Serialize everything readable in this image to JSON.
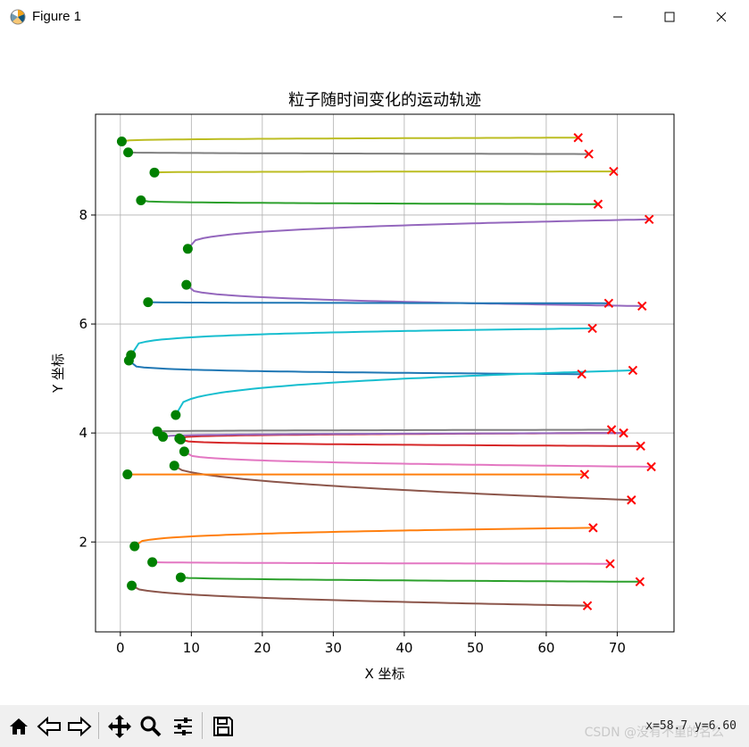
{
  "window": {
    "title": "Figure 1"
  },
  "toolbar": {
    "tools": [
      "home-icon",
      "back-icon",
      "forward-icon",
      "pan-icon",
      "zoom-icon",
      "configure-icon",
      "save-icon"
    ],
    "coords": "x=58.7 y=6.60",
    "watermark": "CSDN @没有不重的名么"
  },
  "chart_data": {
    "type": "line",
    "title": "粒子随时间变化的运动轨迹",
    "xlabel": "X 坐标",
    "ylabel": "Y 坐标",
    "xlim": [
      -3.5,
      78
    ],
    "ylim": [
      0.35,
      9.85
    ],
    "xticks": [
      0,
      10,
      20,
      30,
      40,
      50,
      60,
      70
    ],
    "yticks": [
      2,
      4,
      6,
      8
    ],
    "grid": true,
    "start_marker": {
      "shape": "circle",
      "color": "#008000"
    },
    "end_marker": {
      "shape": "x",
      "color": "#ff0000"
    },
    "series": [
      {
        "color": "#bcbd22",
        "start": [
          0.2,
          9.35
        ],
        "end": [
          64.5,
          9.42
        ],
        "curve": 0.3
      },
      {
        "color": "#7f7f7f",
        "start": [
          1.1,
          9.15
        ],
        "end": [
          66.0,
          9.12
        ],
        "curve": 0.5
      },
      {
        "color": "#bcbd22",
        "start": [
          4.8,
          8.78
        ],
        "end": [
          69.5,
          8.8
        ],
        "curve": 0.3
      },
      {
        "color": "#2ca02c",
        "start": [
          2.9,
          8.27
        ],
        "end": [
          67.3,
          8.2
        ],
        "curve": 0.3
      },
      {
        "color": "#9467bd",
        "start": [
          9.5,
          7.38
        ],
        "end": [
          74.5,
          7.92
        ],
        "curve": 0.3
      },
      {
        "color": "#9467bd",
        "start": [
          9.3,
          6.72
        ],
        "end": [
          73.5,
          6.33
        ],
        "curve": 0.3
      },
      {
        "color": "#1f77b4",
        "start": [
          3.9,
          6.4
        ],
        "end": [
          68.8,
          6.38
        ],
        "curve": 0.5
      },
      {
        "color": "#17becf",
        "start": [
          1.5,
          5.43
        ],
        "end": [
          66.5,
          5.92
        ],
        "curve": 0.2
      },
      {
        "color": "#1f77b4",
        "start": [
          1.2,
          5.33
        ],
        "end": [
          65.0,
          5.08
        ],
        "curve": 0.2
      },
      {
        "color": "#17becf",
        "start": [
          7.8,
          4.33
        ],
        "end": [
          72.2,
          5.15
        ],
        "curve": 0.3
      },
      {
        "color": "#7f7f7f",
        "start": [
          5.2,
          4.03
        ],
        "end": [
          69.2,
          4.06
        ],
        "curve": 0.5
      },
      {
        "color": "#d62728",
        "start": [
          8.3,
          3.9
        ],
        "end": [
          70.9,
          4.0
        ],
        "curve": 0.3
      },
      {
        "color": "#9467bd",
        "start": [
          6.0,
          3.93
        ],
        "end": [
          70.9,
          4.0
        ],
        "curve": 0.3
      },
      {
        "color": "#d62728",
        "start": [
          8.5,
          3.88
        ],
        "end": [
          73.3,
          3.76
        ],
        "curve": 0.3
      },
      {
        "color": "#e377c2",
        "start": [
          9.0,
          3.66
        ],
        "end": [
          74.8,
          3.38
        ],
        "curve": 0.3
      },
      {
        "color": "#8c564b",
        "start": [
          7.6,
          3.4
        ],
        "end": [
          72.0,
          2.77
        ],
        "curve": 0.5
      },
      {
        "color": "#ff7f0e",
        "start": [
          1.0,
          3.24
        ],
        "end": [
          65.4,
          3.24
        ],
        "curve": 0.5
      },
      {
        "color": "#ff7f0e",
        "start": [
          2.0,
          1.92
        ],
        "end": [
          66.6,
          2.26
        ],
        "curve": 0.3
      },
      {
        "color": "#e377c2",
        "start": [
          4.5,
          1.63
        ],
        "end": [
          69.0,
          1.6
        ],
        "curve": 0.5
      },
      {
        "color": "#2ca02c",
        "start": [
          8.5,
          1.35
        ],
        "end": [
          73.2,
          1.27
        ],
        "curve": 0.5
      },
      {
        "color": "#8c564b",
        "start": [
          1.6,
          1.2
        ],
        "end": [
          65.8,
          0.83
        ],
        "curve": 0.4
      }
    ]
  }
}
